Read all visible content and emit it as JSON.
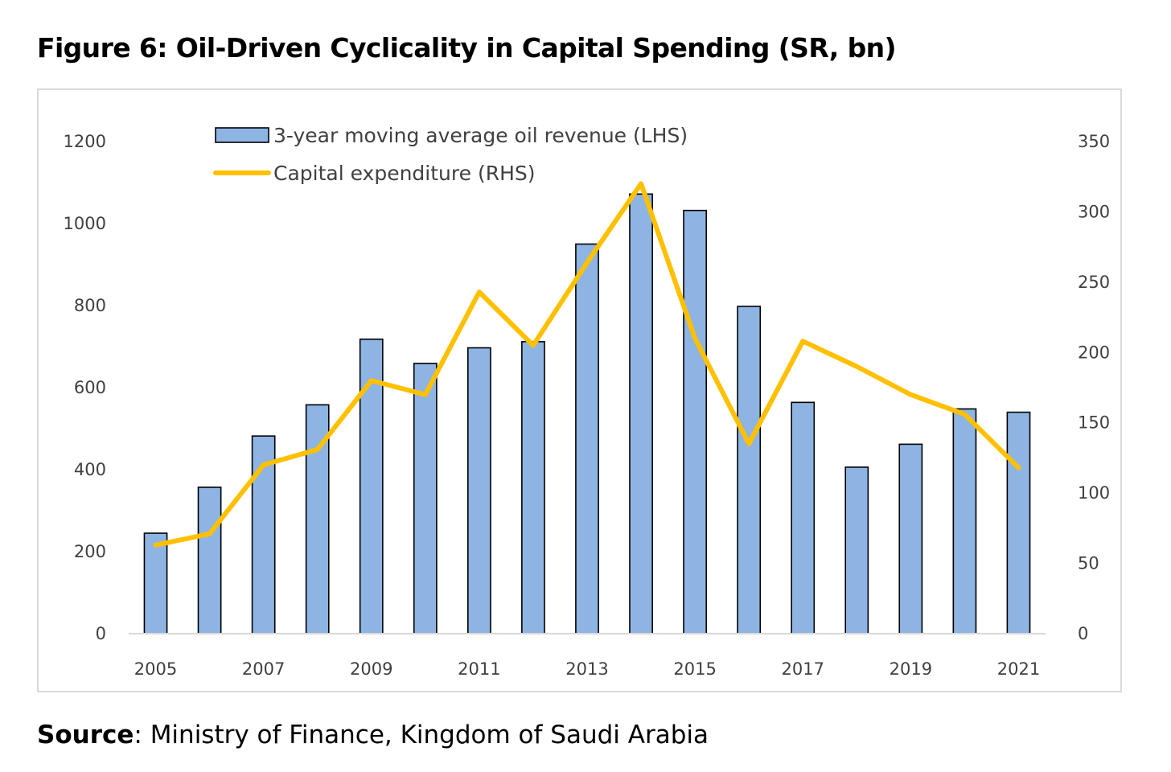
{
  "title": "Figure 6: Oil-Driven Cyclicality in Capital Spending (SR, bn)",
  "source": {
    "label": "Source",
    "text": ": Ministry of Finance, Kingdom of Saudi Arabia"
  },
  "colors": {
    "bar_fill": "#8eb4e3",
    "bar_stroke": "#000000",
    "line": "#ffc000",
    "axis": "#d9d9d9",
    "tick_text": "#404040"
  },
  "chart_data": {
    "type": "bar",
    "title": "",
    "xlabel": "",
    "ylabel": "",
    "categories": [
      "2005",
      "2006",
      "2007",
      "2008",
      "2009",
      "2010",
      "2011",
      "2012",
      "2013",
      "2014",
      "2015",
      "2016",
      "2017",
      "2018",
      "2019",
      "2020",
      "2021"
    ],
    "x_tick_labels": [
      "2005",
      "2007",
      "2009",
      "2011",
      "2013",
      "2015",
      "2017",
      "2019",
      "2021"
    ],
    "ylim_left": [
      0,
      1200
    ],
    "y_ticks_left": [
      0,
      200,
      400,
      600,
      800,
      1000,
      1200
    ],
    "ylim_right": [
      0,
      350
    ],
    "y_ticks_right": [
      0,
      50,
      100,
      150,
      200,
      250,
      300,
      350
    ],
    "grid": false,
    "legend_position": "top",
    "series": [
      {
        "name": "3-year moving average oil revenue (LHS)",
        "type": "bar",
        "axis": "left",
        "values": [
          245,
          357,
          482,
          558,
          718,
          659,
          697,
          712,
          950,
          1072,
          1032,
          798,
          564,
          406,
          462,
          548,
          540
        ]
      },
      {
        "name": "Capital expenditure (RHS)",
        "type": "line",
        "axis": "right",
        "values": [
          63,
          71,
          120,
          131,
          180,
          170,
          243,
          205,
          264,
          320,
          210,
          135,
          208,
          190,
          170,
          156,
          118
        ]
      }
    ]
  }
}
